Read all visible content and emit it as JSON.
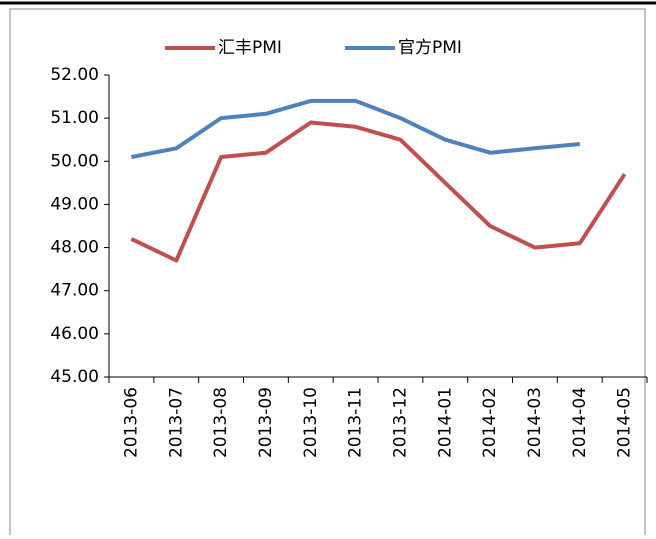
{
  "chart_data": {
    "type": "line",
    "categories": [
      "2013-06",
      "2013-07",
      "2013-08",
      "2013-09",
      "2013-10",
      "2013-11",
      "2013-12",
      "2014-01",
      "2014-02",
      "2014-03",
      "2014-04",
      "2014-05"
    ],
    "series": [
      {
        "name": "汇丰PMI",
        "color": "#c0504d",
        "values": [
          48.2,
          47.7,
          50.1,
          50.2,
          50.9,
          50.8,
          50.5,
          49.5,
          48.5,
          48.0,
          48.1,
          49.7
        ]
      },
      {
        "name": "官方PMI",
        "color": "#4f81bd",
        "values": [
          50.1,
          50.3,
          51.0,
          51.1,
          51.4,
          51.4,
          51.0,
          50.5,
          50.2,
          50.3,
          50.4,
          null
        ]
      }
    ],
    "ylim": [
      45,
      52
    ],
    "yticks": [
      {
        "value": 45,
        "label": "45.00"
      },
      {
        "value": 46,
        "label": "46.00"
      },
      {
        "value": 47,
        "label": "47.00"
      },
      {
        "value": 48,
        "label": "48.00"
      },
      {
        "value": 49,
        "label": "49.00"
      },
      {
        "value": 50,
        "label": "50.00"
      },
      {
        "value": 51,
        "label": "51.00"
      },
      {
        "value": 52,
        "label": "52.00"
      }
    ],
    "legend": "top",
    "grid": false
  }
}
